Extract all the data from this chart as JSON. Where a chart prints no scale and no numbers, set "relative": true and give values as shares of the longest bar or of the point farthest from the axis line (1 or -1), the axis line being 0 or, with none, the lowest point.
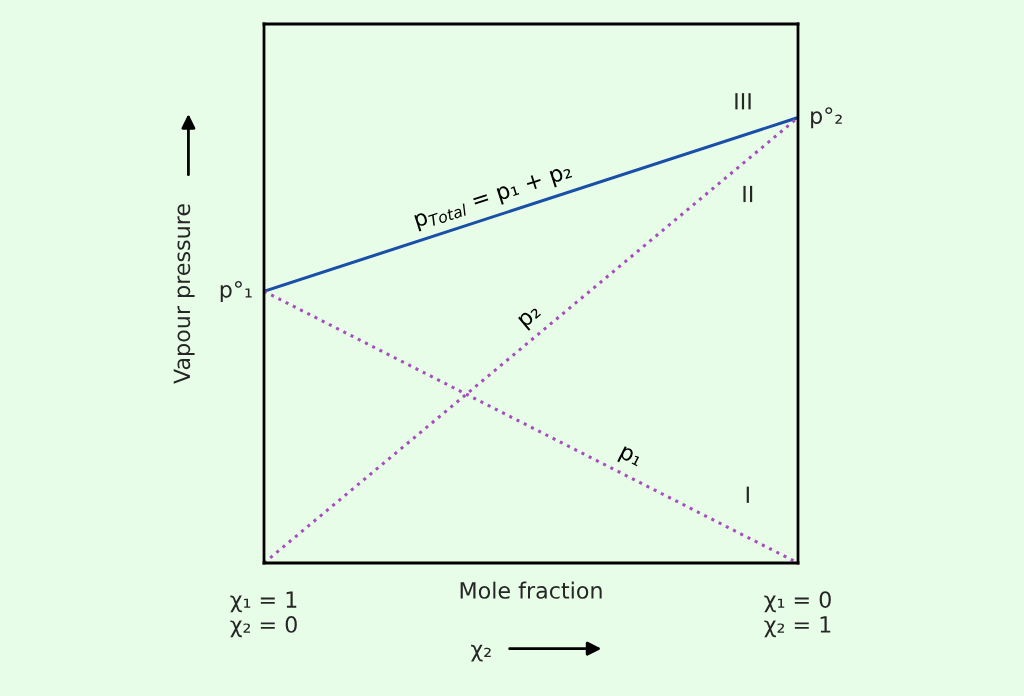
{
  "chart_data": {
    "type": "line",
    "relative": true,
    "xlabel": "Mole fraction",
    "ylabel": "Vapour pressure",
    "categories": [
      "χ₁ = 1\nχ₂ = 0",
      "χ₁ = 0\nχ₂ = 1"
    ],
    "legend": false,
    "marker": "none",
    "series": [
      {
        "name": "p$_{Total}$ = p₁ + p₂",
        "color": "#1a4fa8",
        "values": [
          0.61,
          1
        ],
        "line_style": "solid"
      },
      {
        "name": "p₁",
        "color": "#a64dbf",
        "values": [
          0.61,
          0
        ],
        "line_style": "dotted"
      },
      {
        "name": "p₂",
        "color": "#a64dbf",
        "values": [
          0,
          1
        ],
        "line_style": "dotted"
      }
    ],
    "annotations": [
      "p°₁",
      "p°₂",
      "I",
      "II",
      "III",
      "χ₂"
    ]
  }
}
